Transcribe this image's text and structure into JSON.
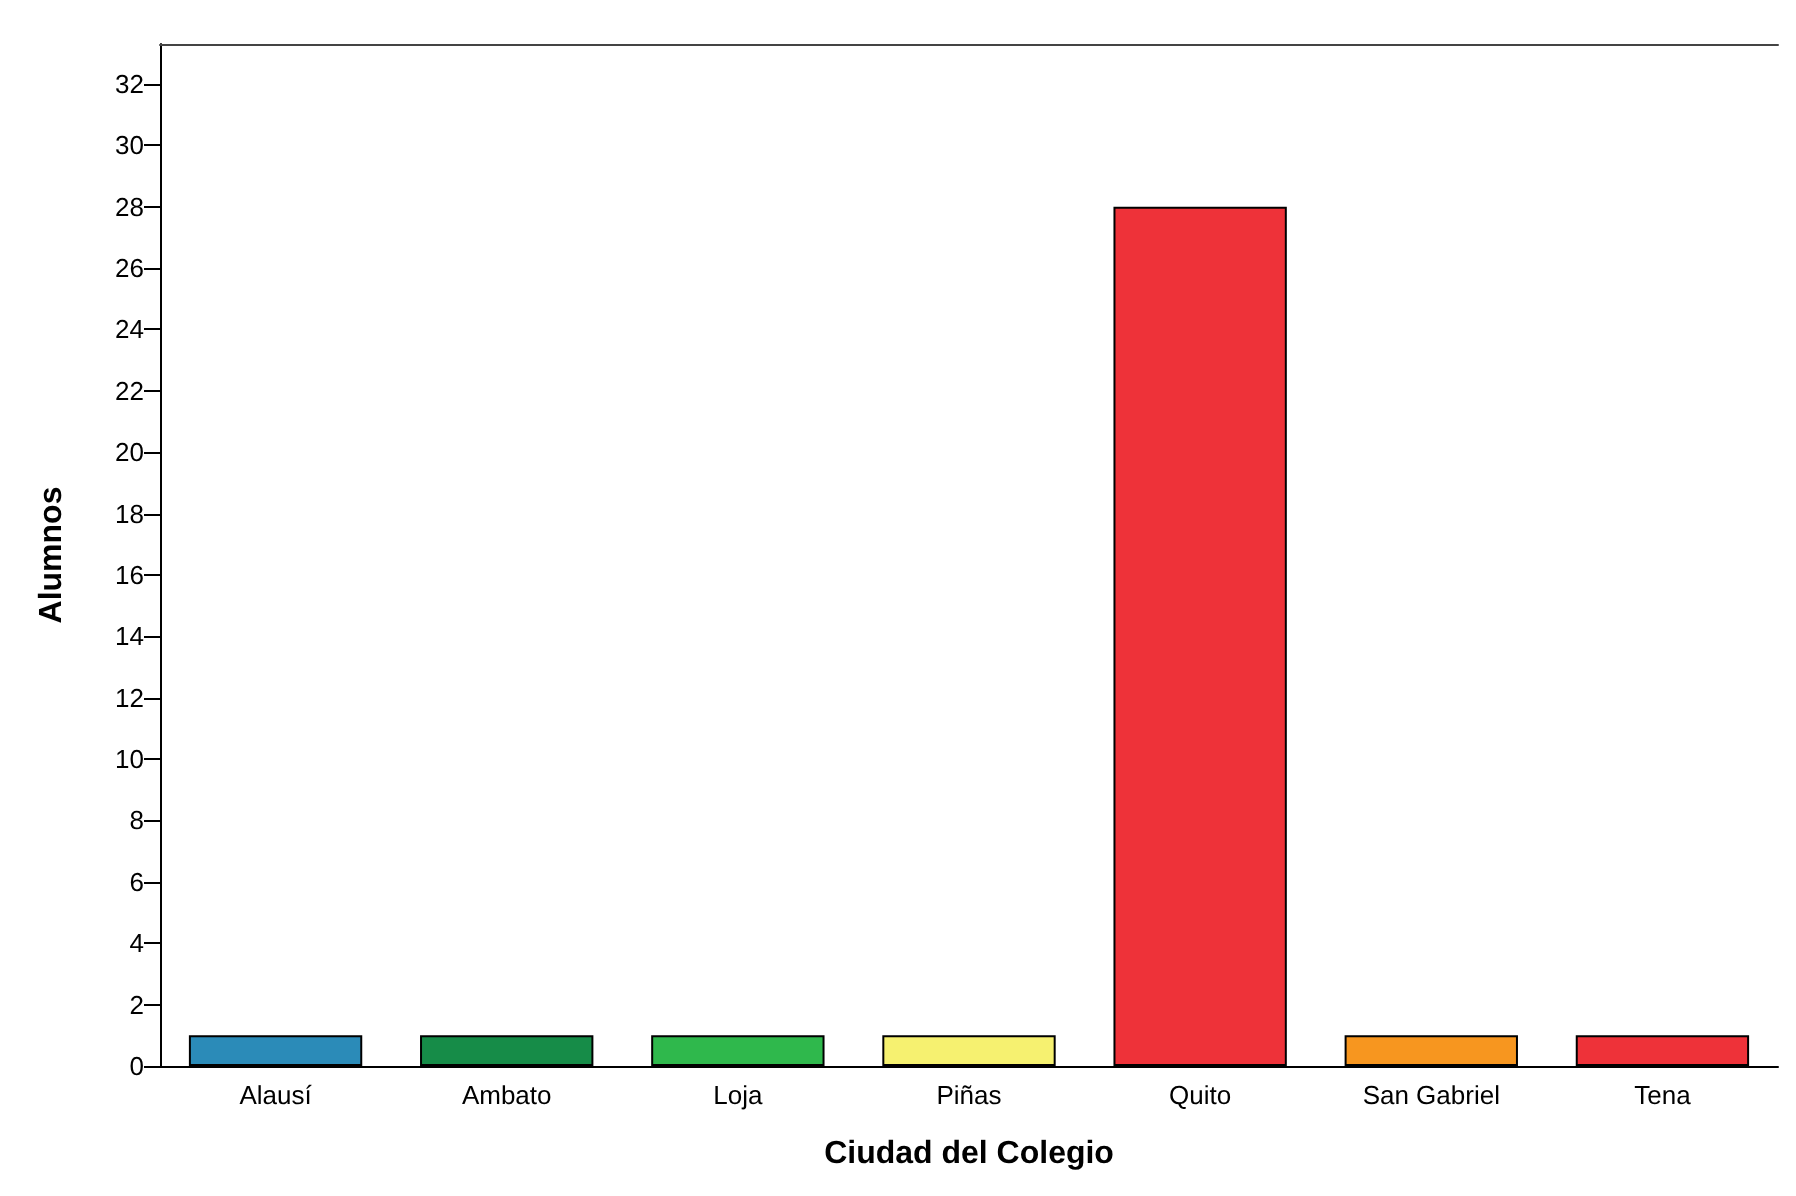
{
  "chart_data": {
    "type": "bar",
    "xlabel": "Ciudad del Colegio",
    "ylabel": "Alumnos",
    "categories": [
      "Alausí",
      "Ambato",
      "Loja",
      "Piñas",
      "Quito",
      "San Gabriel",
      "Tena"
    ],
    "values": [
      1,
      1,
      1,
      1,
      28,
      1,
      1
    ],
    "colors": [
      "#2b8bb8",
      "#168c48",
      "#2fb84c",
      "#f6f170",
      "#ee3239",
      "#f7961f",
      "#ee3239"
    ],
    "ylim": [
      0,
      33.3
    ],
    "yticks": [
      0,
      2,
      4,
      6,
      8,
      10,
      12,
      14,
      16,
      18,
      20,
      22,
      24,
      26,
      28,
      30,
      32
    ],
    "grid": false
  }
}
